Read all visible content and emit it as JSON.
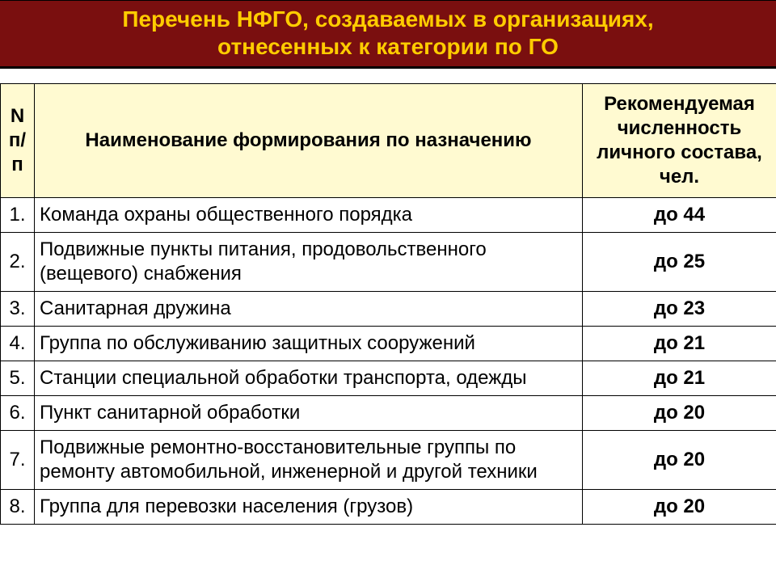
{
  "header": {
    "line1": "Перечень НФГО, создаваемых в организациях,",
    "line2": "отнесенных к категории по ГО"
  },
  "table": {
    "columns": {
      "num": "N п/п",
      "name": "Наименование формирования по назначению",
      "count": "Рекомендуемая численность личного состава, чел."
    },
    "rows": [
      {
        "num": "1.",
        "name": "Команда охраны общественного порядка",
        "count": "до 44"
      },
      {
        "num": "2.",
        "name": "Подвижные пункты питания, продовольственного (вещевого) снабжения",
        "count": "до 25"
      },
      {
        "num": "3.",
        "name": "Санитарная дружина",
        "count": "до 23"
      },
      {
        "num": "4.",
        "name": "Группа по обслуживанию защитных сооружений",
        "count": "до 21"
      },
      {
        "num": "5.",
        "name": "Станции специальной обработки транспорта, одежды",
        "count": "до 21"
      },
      {
        "num": "6.",
        "name": "Пункт санитарной обработки",
        "count": "до 20"
      },
      {
        "num": "7.",
        "name": "Подвижные ремонтно-восстановительные группы по ремонту автомобильной, инженерной и другой техники",
        "count": "до 20"
      },
      {
        "num": "8.",
        "name": "Группа для перевозки населения (грузов)",
        "count": "до 20"
      }
    ]
  },
  "style": {
    "header_bg": "#7a0f0f",
    "header_text": "#ffcc00",
    "th_bg": "#fffad1",
    "border": "#000000",
    "font_family": "Arial"
  }
}
